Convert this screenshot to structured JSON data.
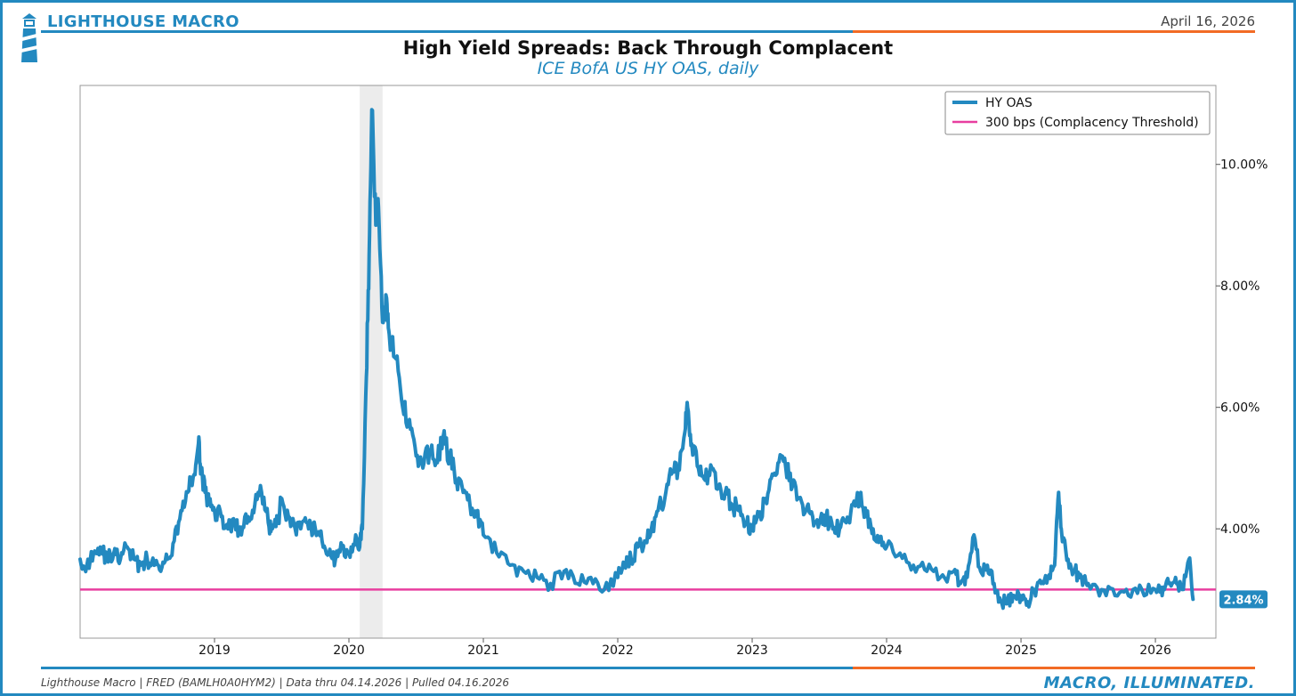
{
  "header": {
    "brand": "LIGHTHOUSE MACRO",
    "date": "April 16, 2026",
    "title": "High Yield Spreads: Back Through Complacent",
    "subtitle": "ICE BofA US HY OAS, daily"
  },
  "footer": {
    "source": "Lighthouse Macro | FRED (BAMLH0A0HYM2) | Data thru 04.14.2026 | Pulled 04.16.2026",
    "tagline": "MACRO, ILLUMINATED."
  },
  "colors": {
    "brand_blue": "#2389c0",
    "accent_orange": "#f26b25",
    "threshold_pink": "#e83e9f",
    "recession_gray": "#ececec"
  },
  "chart_data": {
    "type": "line",
    "title": "High Yield Spreads: Back Through Complacent",
    "subtitle": "ICE BofA US HY OAS, daily",
    "xlabel": "",
    "ylabel": "",
    "x_ticks": [
      "2019",
      "2020",
      "2021",
      "2022",
      "2023",
      "2024",
      "2025",
      "2026"
    ],
    "x_tick_values": [
      2019.0,
      2020.0,
      2021.0,
      2022.0,
      2023.0,
      2024.0,
      2025.0,
      2026.0
    ],
    "y_ticks": [
      "4.00%",
      "6.00%",
      "8.00%",
      "10.00%"
    ],
    "y_tick_values": [
      4,
      6,
      8,
      10
    ],
    "xlim": [
      2018.0,
      2026.45
    ],
    "ylim": [
      2.2,
      11.3
    ],
    "y_axis_side": "right",
    "legend_position": "top-right",
    "shaded_periods": [
      {
        "start": 2020.08,
        "end": 2020.25,
        "label": "recession"
      }
    ],
    "last_value_label": "2.84%",
    "series": [
      {
        "name": "HY OAS",
        "color": "#2389c0",
        "x": [
          2018.0,
          2018.05,
          2018.1,
          2018.15,
          2018.2,
          2018.25,
          2018.3,
          2018.35,
          2018.4,
          2018.45,
          2018.5,
          2018.55,
          2018.6,
          2018.65,
          2018.7,
          2018.75,
          2018.8,
          2018.85,
          2018.88,
          2018.9,
          2018.93,
          2018.96,
          2019.0,
          2019.05,
          2019.1,
          2019.15,
          2019.2,
          2019.25,
          2019.3,
          2019.35,
          2019.4,
          2019.43,
          2019.47,
          2019.5,
          2019.55,
          2019.6,
          2019.65,
          2019.7,
          2019.75,
          2019.8,
          2019.85,
          2019.9,
          2019.95,
          2020.0,
          2020.05,
          2020.08,
          2020.1,
          2020.13,
          2020.15,
          2020.17,
          2020.2,
          2020.22,
          2020.25,
          2020.28,
          2020.3,
          2020.35,
          2020.4,
          2020.45,
          2020.5,
          2020.55,
          2020.6,
          2020.65,
          2020.7,
          2020.75,
          2020.8,
          2020.85,
          2020.9,
          2020.95,
          2021.0,
          2021.1,
          2021.2,
          2021.3,
          2021.4,
          2021.5,
          2021.6,
          2021.7,
          2021.8,
          2021.9,
          2022.0,
          2022.05,
          2022.1,
          2022.15,
          2022.2,
          2022.25,
          2022.3,
          2022.35,
          2022.4,
          2022.45,
          2022.5,
          2022.52,
          2022.55,
          2022.6,
          2022.65,
          2022.7,
          2022.75,
          2022.8,
          2022.85,
          2022.9,
          2022.95,
          2023.0,
          2023.05,
          2023.1,
          2023.15,
          2023.2,
          2023.25,
          2023.3,
          2023.35,
          2023.4,
          2023.45,
          2023.5,
          2023.55,
          2023.6,
          2023.65,
          2023.7,
          2023.75,
          2023.8,
          2023.85,
          2023.9,
          2023.95,
          2024.0,
          2024.1,
          2024.2,
          2024.3,
          2024.4,
          2024.5,
          2024.55,
          2024.6,
          2024.65,
          2024.7,
          2024.75,
          2024.8,
          2024.85,
          2024.9,
          2024.95,
          2025.0,
          2025.05,
          2025.1,
          2025.15,
          2025.2,
          2025.25,
          2025.28,
          2025.3,
          2025.35,
          2025.4,
          2025.45,
          2025.5,
          2025.6,
          2025.7,
          2025.8,
          2025.9,
          2026.0,
          2026.05,
          2026.1,
          2026.15,
          2026.2,
          2026.25,
          2026.28
        ],
        "values": [
          3.5,
          3.4,
          3.6,
          3.7,
          3.5,
          3.6,
          3.5,
          3.7,
          3.5,
          3.4,
          3.5,
          3.4,
          3.3,
          3.5,
          3.8,
          4.3,
          4.6,
          4.9,
          5.4,
          5.0,
          4.6,
          4.4,
          4.3,
          4.2,
          4.0,
          4.1,
          3.9,
          4.2,
          4.4,
          4.6,
          4.1,
          4.0,
          4.1,
          4.5,
          4.2,
          4.0,
          4.1,
          4.0,
          4.0,
          3.8,
          3.6,
          3.5,
          3.7,
          3.6,
          3.9,
          3.7,
          4.0,
          6.5,
          8.5,
          10.9,
          9.0,
          9.3,
          7.4,
          7.8,
          7.2,
          6.8,
          6.0,
          5.8,
          5.2,
          5.0,
          5.3,
          5.1,
          5.5,
          5.2,
          4.8,
          4.6,
          4.4,
          4.2,
          3.9,
          3.6,
          3.4,
          3.3,
          3.2,
          3.1,
          3.3,
          3.1,
          3.2,
          3.0,
          3.2,
          3.4,
          3.5,
          3.7,
          3.8,
          4.0,
          4.3,
          4.5,
          4.9,
          5.0,
          5.6,
          6.0,
          5.4,
          5.0,
          4.8,
          5.0,
          4.7,
          4.6,
          4.4,
          4.3,
          4.1,
          4.0,
          4.2,
          4.5,
          4.9,
          5.1,
          5.0,
          4.7,
          4.5,
          4.3,
          4.2,
          4.1,
          4.2,
          4.0,
          4.0,
          4.1,
          4.4,
          4.5,
          4.2,
          4.0,
          3.8,
          3.7,
          3.6,
          3.4,
          3.3,
          3.2,
          3.3,
          3.1,
          3.2,
          3.9,
          3.3,
          3.4,
          3.1,
          2.8,
          2.8,
          2.9,
          2.9,
          2.8,
          3.0,
          3.1,
          3.2,
          3.4,
          4.6,
          4.0,
          3.5,
          3.3,
          3.2,
          3.1,
          3.0,
          2.9,
          2.9,
          3.0,
          3.0,
          2.9,
          3.1,
          3.2,
          3.0,
          3.5,
          2.84
        ]
      },
      {
        "name": "300 bps (Complacency Threshold)",
        "color": "#e83e9f",
        "constant": 3.0
      }
    ]
  }
}
